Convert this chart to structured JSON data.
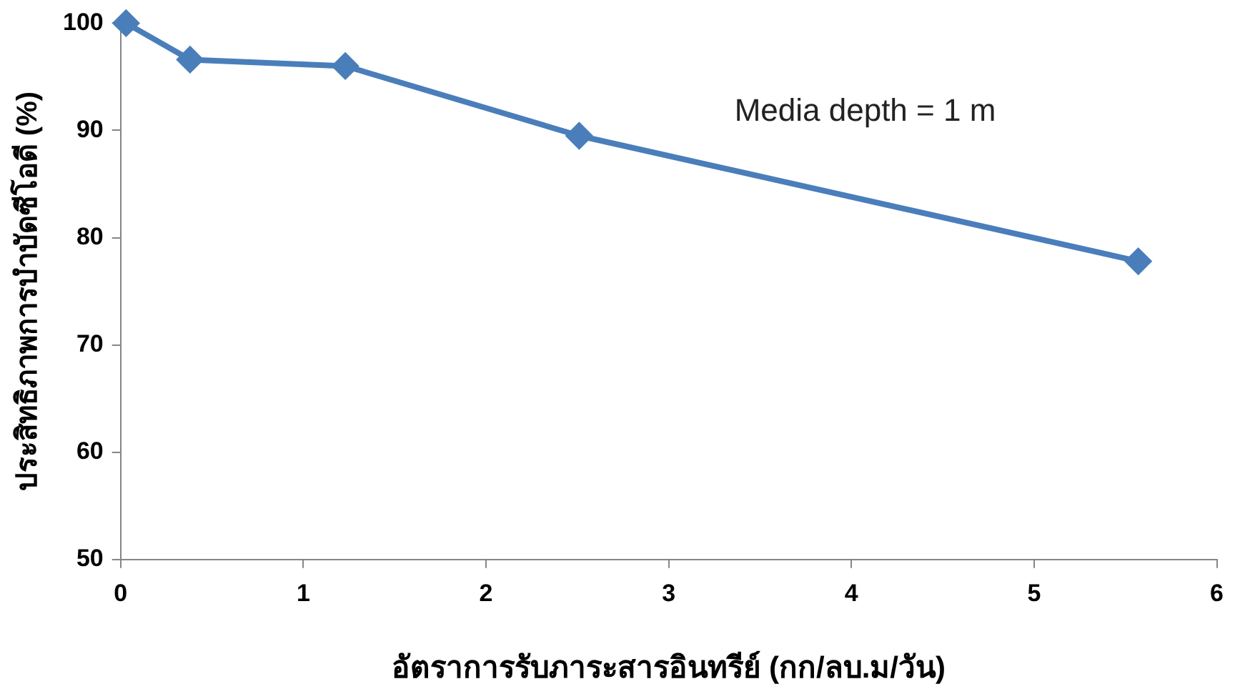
{
  "chart_data": {
    "type": "line",
    "xlabel": "อัตราการรับภาระสารอินทรีย์ (กก/ลบ.ม/วัน)",
    "ylabel": "ประสิทธิภาพการบำบัดซีโอดี (%)",
    "x": [
      0.03,
      0.38,
      1.23,
      2.51,
      5.57
    ],
    "series": [
      {
        "color": "#4a7ebb",
        "values": [
          100,
          96.6,
          96,
          89.5,
          77.8
        ]
      }
    ],
    "xlim": [
      0,
      6
    ],
    "xticks": [
      0,
      1,
      2,
      3,
      4,
      5,
      6
    ],
    "ylim": [
      50,
      100
    ],
    "yticks": [
      50,
      60,
      70,
      80,
      90,
      100
    ],
    "grid": false,
    "legend": false,
    "marker": "diamond",
    "line_style": "solid",
    "annotations": [
      "Media depth = 1 m"
    ]
  }
}
